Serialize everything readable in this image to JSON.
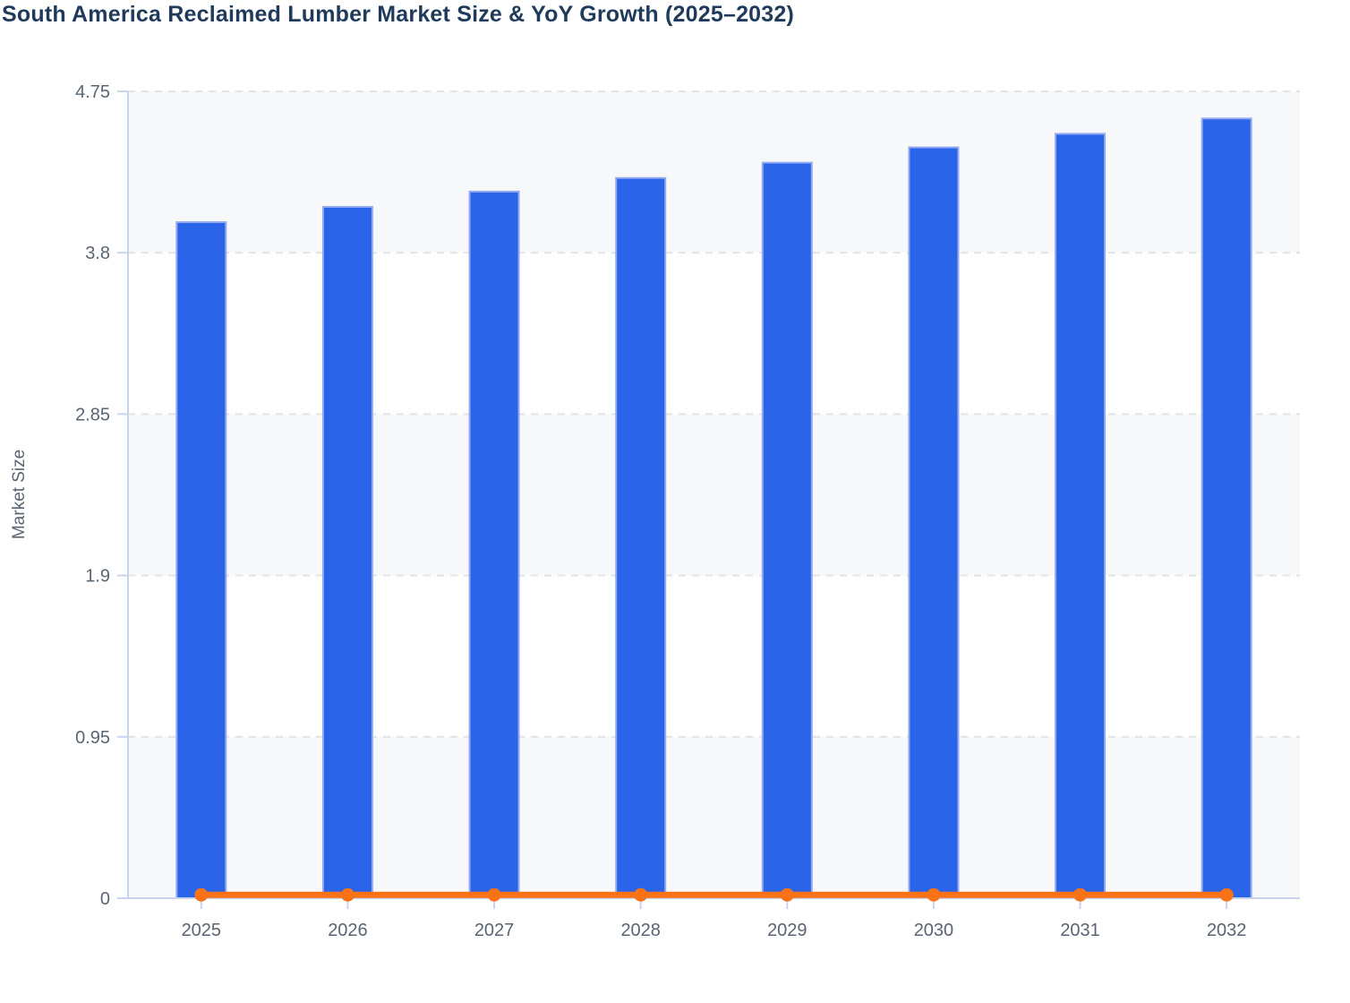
{
  "title": "South America Reclaimed Lumber Market Size & YoY Growth (2025–2032)",
  "colors": {
    "title_text": "#1f3a5a",
    "tick_text": "#5a6473",
    "axis_line": "#c8d4ee",
    "gridline": "#e0e3e8",
    "plot_band": "#f7f8fa",
    "plot_band_alt": "#ffffff",
    "bar_fill": "#2a64e8",
    "bar_border": "#93aaf1",
    "line_stroke": "#f97316",
    "marker_fill": "#f97316",
    "background": "#ffffff"
  },
  "chart_data": {
    "type": "bar",
    "title": "South America Reclaimed Lumber Market Size & YoY Growth (2025–2032)",
    "categories": [
      "2025",
      "2026",
      "2027",
      "2028",
      "2029",
      "2030",
      "2031",
      "2032"
    ],
    "series": [
      {
        "name": "Market Size",
        "type": "bar",
        "color": "#2a64e8",
        "values": [
          3.98,
          4.07,
          4.16,
          4.24,
          4.33,
          4.42,
          4.5,
          4.59
        ]
      },
      {
        "name": "YoY Growth",
        "type": "line",
        "color": "#f97316",
        "values": [
          0.02,
          0.02,
          0.02,
          0.02,
          0.02,
          0.02,
          0.02,
          0.02
        ]
      }
    ],
    "xlabel": "",
    "ylabel": "Market Size",
    "ylim": [
      0,
      4.75
    ],
    "yticks": [
      0,
      0.95,
      1.9,
      2.85,
      3.8,
      4.75
    ],
    "ytick_labels": [
      "0",
      "0.95",
      "1.9",
      "2.85",
      "3.8",
      "4.75"
    ],
    "grid": "horizontal dashed",
    "legend_position": "none",
    "plot_bands": "alternating horizontal fill between gridlines, light band adjacent to x-axis"
  }
}
